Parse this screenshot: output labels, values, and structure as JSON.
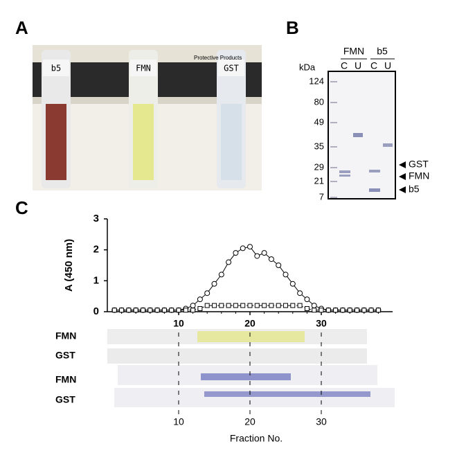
{
  "panel_a": {
    "label": "A",
    "brand_text": "Protective Products",
    "tubes": [
      "b5",
      "FMN",
      "GST"
    ]
  },
  "panel_b": {
    "label": "B",
    "unit": "kDa",
    "markers": [
      "124",
      "80",
      "49",
      "35",
      "29",
      "21",
      "7"
    ],
    "groups": [
      "FMN",
      "b5"
    ],
    "lanes": [
      "C",
      "U",
      "C",
      "U"
    ],
    "bands": [
      "GST",
      "FMN",
      "b5"
    ]
  },
  "panel_c": {
    "label": "C",
    "row_labels": [
      "FMN",
      "GST",
      "FMN",
      "GST"
    ],
    "chart_data": {
      "type": "line",
      "y_label": "A (450 nm)",
      "x_label": "Fraction No.",
      "x": [
        1,
        2,
        3,
        4,
        5,
        6,
        7,
        8,
        9,
        10,
        11,
        12,
        13,
        14,
        15,
        16,
        17,
        18,
        19,
        20,
        21,
        22,
        23,
        24,
        25,
        26,
        27,
        28,
        29,
        30,
        31,
        32,
        33,
        34,
        35,
        36,
        37,
        38
      ],
      "series": [
        {
          "color": "#000000",
          "marker": "circle",
          "values": [
            0.05,
            0.05,
            0.05,
            0.05,
            0.05,
            0.05,
            0.05,
            0.05,
            0.05,
            0.05,
            0.1,
            0.2,
            0.4,
            0.6,
            0.9,
            1.2,
            1.6,
            1.9,
            2.05,
            2.1,
            1.8,
            1.9,
            1.7,
            1.5,
            1.2,
            0.9,
            0.6,
            0.4,
            0.2,
            0.1,
            0.05,
            0.05,
            0.05,
            0.05,
            0.05,
            0.05,
            0.05,
            0.05
          ]
        },
        {
          "color": "#000000",
          "marker": "square",
          "values": [
            0.05,
            0.05,
            0.05,
            0.05,
            0.05,
            0.05,
            0.05,
            0.05,
            0.05,
            0.05,
            0.05,
            0.05,
            0.1,
            0.2,
            0.2,
            0.2,
            0.2,
            0.2,
            0.2,
            0.2,
            0.2,
            0.2,
            0.2,
            0.2,
            0.2,
            0.2,
            0.2,
            0.1,
            0.05,
            0.05,
            0.05,
            0.05,
            0.05,
            0.05,
            0.05,
            0.05,
            0.05,
            0.05
          ]
        }
      ],
      "xlim": [
        0,
        40
      ],
      "ylim": [
        0,
        3
      ],
      "xticks": [
        10,
        20,
        30
      ],
      "yticks": [
        0,
        1,
        2,
        3
      ]
    }
  }
}
